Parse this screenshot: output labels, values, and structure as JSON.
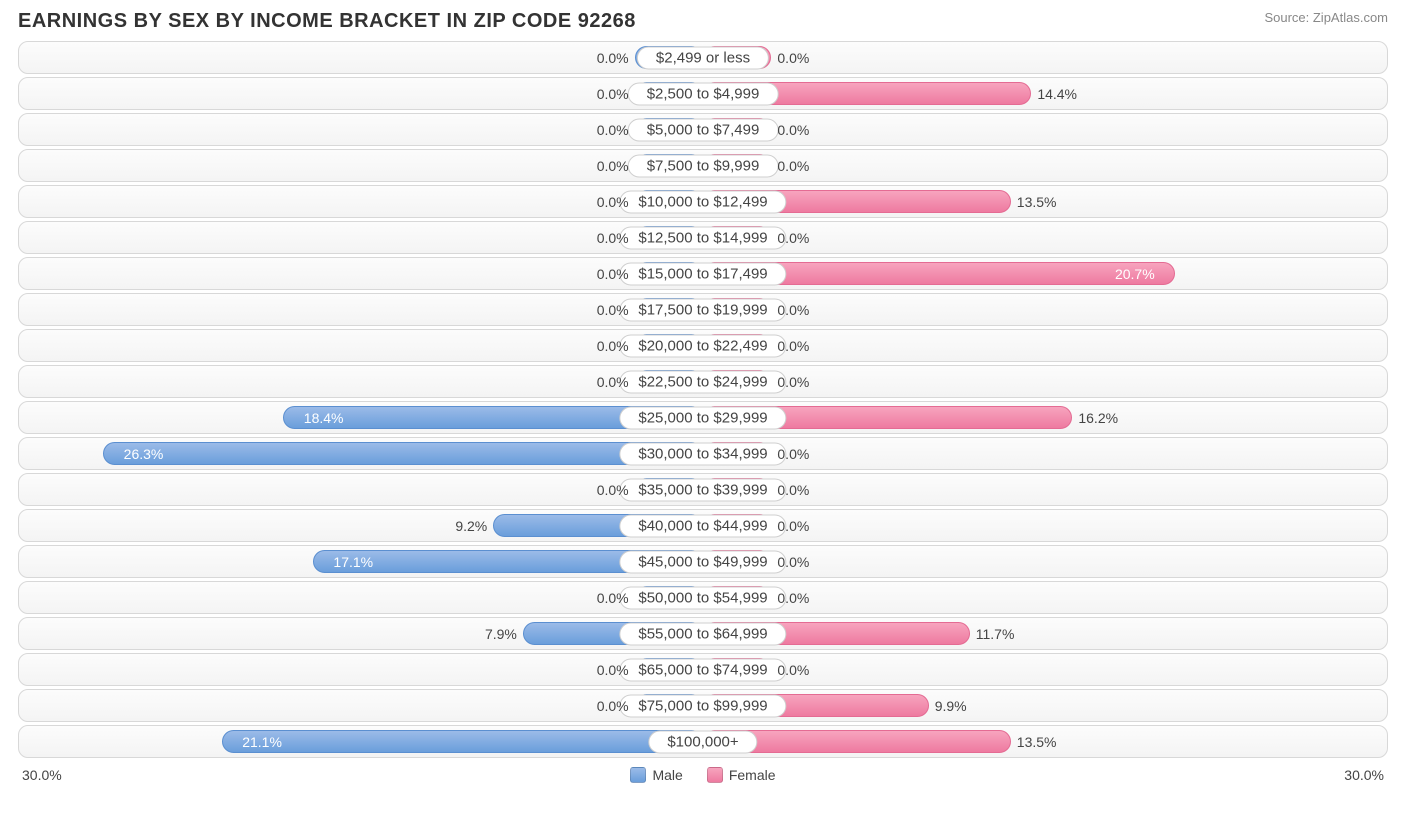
{
  "title": "EARNINGS BY SEX BY INCOME BRACKET IN ZIP CODE 92268",
  "source": "Source: ZipAtlas.com",
  "axis_max_label": "30.0%",
  "axis_max": 30.0,
  "colors": {
    "male_top": "#9bbbe8",
    "male_bottom": "#6a9edb",
    "male_border": "#5b8fd0",
    "female_top": "#f7a4be",
    "female_bottom": "#ee7aa0",
    "female_border": "#e46b93",
    "row_border": "#d8d8d8",
    "row_bg_top": "#fcfcfc",
    "row_bg_bottom": "#f4f4f4",
    "text": "#444444",
    "title_color": "#333333",
    "source_color": "#888888"
  },
  "legend": {
    "male": "Male",
    "female": "Female"
  },
  "min_bar_pct": 3.0,
  "rows": [
    {
      "label": "$2,499 or less",
      "male": 0.0,
      "female": 0.0
    },
    {
      "label": "$2,500 to $4,999",
      "male": 0.0,
      "female": 14.4
    },
    {
      "label": "$5,000 to $7,499",
      "male": 0.0,
      "female": 0.0
    },
    {
      "label": "$7,500 to $9,999",
      "male": 0.0,
      "female": 0.0
    },
    {
      "label": "$10,000 to $12,499",
      "male": 0.0,
      "female": 13.5
    },
    {
      "label": "$12,500 to $14,999",
      "male": 0.0,
      "female": 0.0
    },
    {
      "label": "$15,000 to $17,499",
      "male": 0.0,
      "female": 20.7
    },
    {
      "label": "$17,500 to $19,999",
      "male": 0.0,
      "female": 0.0
    },
    {
      "label": "$20,000 to $22,499",
      "male": 0.0,
      "female": 0.0
    },
    {
      "label": "$22,500 to $24,999",
      "male": 0.0,
      "female": 0.0
    },
    {
      "label": "$25,000 to $29,999",
      "male": 18.4,
      "female": 16.2
    },
    {
      "label": "$30,000 to $34,999",
      "male": 26.3,
      "female": 0.0
    },
    {
      "label": "$35,000 to $39,999",
      "male": 0.0,
      "female": 0.0
    },
    {
      "label": "$40,000 to $44,999",
      "male": 9.2,
      "female": 0.0
    },
    {
      "label": "$45,000 to $49,999",
      "male": 17.1,
      "female": 0.0
    },
    {
      "label": "$50,000 to $54,999",
      "male": 0.0,
      "female": 0.0
    },
    {
      "label": "$55,000 to $64,999",
      "male": 7.9,
      "female": 11.7
    },
    {
      "label": "$65,000 to $74,999",
      "male": 0.0,
      "female": 0.0
    },
    {
      "label": "$75,000 to $99,999",
      "male": 0.0,
      "female": 9.9
    },
    {
      "label": "$100,000+",
      "male": 21.1,
      "female": 13.5
    }
  ]
}
